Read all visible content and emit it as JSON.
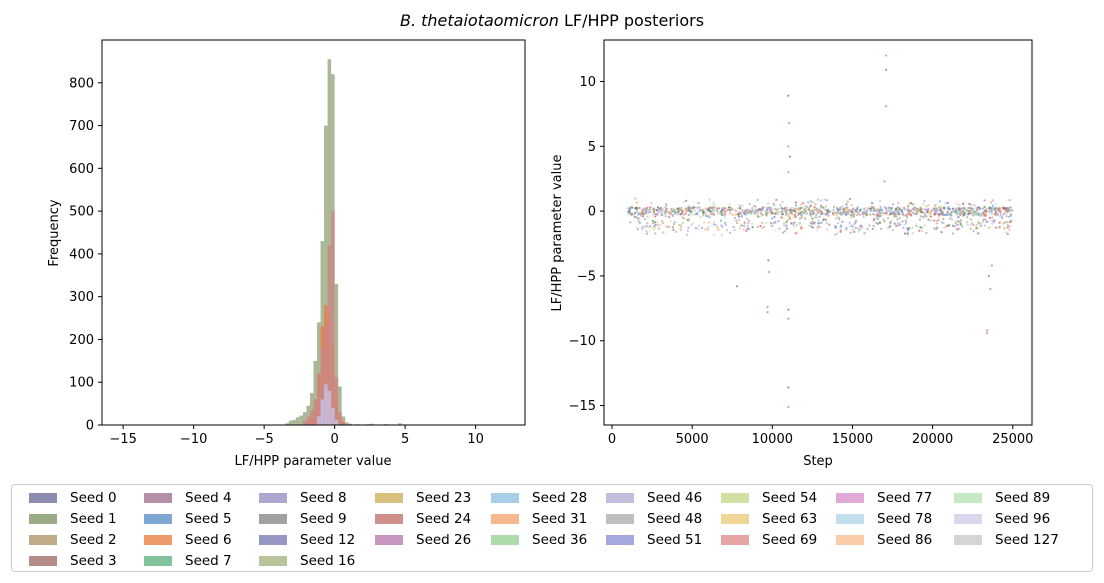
{
  "title_species": "B. thetaiotaomicron",
  "title_suffix": " LF/HPP posteriors",
  "chart_data": [
    {
      "type": "bar",
      "subtype": "overlaid-histogram",
      "xlabel": "LF/HPP parameter value",
      "ylabel": "Frequency",
      "xlim": [
        -16.5,
        13.5
      ],
      "ylim": [
        0,
        900
      ],
      "xticks": [
        -15,
        -10,
        -5,
        0,
        5,
        10
      ],
      "xtick_labels": [
        "−15",
        "−10",
        "−5",
        "0",
        "5",
        "10"
      ],
      "yticks": [
        0,
        100,
        200,
        300,
        400,
        500,
        600,
        700,
        800
      ],
      "yticks_labels": [
        "0",
        "100",
        "200",
        "300",
        "400",
        "500",
        "600",
        "700",
        "800"
      ],
      "bin_width": 0.25,
      "series": [
        {
          "name": "Seed 1",
          "color": "#9bab86",
          "bins": [
            [
              -3.5,
              4
            ],
            [
              -3.25,
              10
            ],
            [
              -3.0,
              12
            ],
            [
              -2.75,
              18
            ],
            [
              -2.5,
              22
            ],
            [
              -2.25,
              30
            ],
            [
              -2.0,
              45
            ],
            [
              -1.75,
              75
            ],
            [
              -1.5,
              150
            ],
            [
              -1.25,
              240
            ],
            [
              -1.0,
              430
            ],
            [
              -0.75,
              700
            ],
            [
              -0.5,
              855
            ],
            [
              -0.25,
              820
            ],
            [
              0.0,
              330
            ],
            [
              0.25,
              90
            ],
            [
              0.5,
              20
            ],
            [
              0.75,
              6
            ],
            [
              1.0,
              3
            ],
            [
              1.5,
              2
            ],
            [
              2.25,
              2
            ],
            [
              2.5,
              3
            ],
            [
              3.5,
              2
            ],
            [
              4.5,
              4
            ]
          ]
        },
        {
          "name": "Seed 6",
          "color": "#e77c4f",
          "bins": [
            [
              -2.0,
              8
            ],
            [
              -1.75,
              18
            ],
            [
              -1.5,
              55
            ],
            [
              -1.25,
              120
            ],
            [
              -1.0,
              230
            ],
            [
              -0.75,
              280
            ],
            [
              -0.5,
              250
            ],
            [
              -0.25,
              190
            ],
            [
              0.0,
              70
            ],
            [
              0.25,
              20
            ],
            [
              0.5,
              6
            ]
          ]
        },
        {
          "name": "Seed 24",
          "color": "#c98884",
          "bins": [
            [
              -2.25,
              10
            ],
            [
              -2.0,
              20
            ],
            [
              -1.75,
              35
            ],
            [
              -1.5,
              60
            ],
            [
              -1.25,
              120
            ],
            [
              -1.0,
              180
            ],
            [
              -0.75,
              230
            ],
            [
              -0.5,
              420
            ],
            [
              -0.25,
              500
            ],
            [
              0.0,
              110
            ],
            [
              0.25,
              30
            ],
            [
              0.5,
              8
            ]
          ]
        },
        {
          "name": "Seed 46",
          "color": "#c5bde0",
          "bins": [
            [
              -1.25,
              20
            ],
            [
              -1.0,
              60
            ],
            [
              -0.75,
              95
            ],
            [
              -0.5,
              80
            ],
            [
              -0.25,
              40
            ],
            [
              0.0,
              12
            ]
          ]
        }
      ],
      "scatter_note": ""
    },
    {
      "type": "scatter",
      "xlabel": "Step",
      "ylabel": "LF/HPP parameter value",
      "xlim": [
        -500,
        26200
      ],
      "ylim": [
        -16.5,
        13.2
      ],
      "xticks": [
        0,
        5000,
        10000,
        15000,
        20000,
        25000
      ],
      "xtick_labels": [
        "0",
        "5000",
        "10000",
        "15000",
        "20000",
        "25000"
      ],
      "yticks": [
        -15,
        -10,
        -5,
        0,
        5,
        10
      ],
      "ytick_labels": [
        "−15",
        "−10",
        "−5",
        "0",
        "5",
        "10"
      ],
      "step_range": [
        1000,
        25000
      ],
      "center": 0,
      "outliers": [
        {
          "x": 11000,
          "y": 8.9
        },
        {
          "x": 11050,
          "y": 6.8
        },
        {
          "x": 11000,
          "y": 5.0
        },
        {
          "x": 11100,
          "y": 4.2
        },
        {
          "x": 11000,
          "y": 3.0
        },
        {
          "x": 17100,
          "y": 12.0
        },
        {
          "x": 17100,
          "y": 10.9
        },
        {
          "x": 17100,
          "y": 8.1
        },
        {
          "x": 17000,
          "y": 2.3
        },
        {
          "x": 11000,
          "y": -13.6
        },
        {
          "x": 11000,
          "y": -15.1
        },
        {
          "x": 11000,
          "y": -8.3
        },
        {
          "x": 11000,
          "y": -7.6
        },
        {
          "x": 9700,
          "y": -7.4
        },
        {
          "x": 9700,
          "y": -7.8
        },
        {
          "x": 7800,
          "y": -5.8
        },
        {
          "x": 23400,
          "y": -9.2
        },
        {
          "x": 23400,
          "y": -9.4
        },
        {
          "x": 23500,
          "y": -5.0
        },
        {
          "x": 23600,
          "y": -6.0
        },
        {
          "x": 9800,
          "y": -4.7
        },
        {
          "x": 9750,
          "y": -3.8
        },
        {
          "x": 23700,
          "y": -4.2
        }
      ]
    }
  ],
  "legend": {
    "columns": [
      [
        {
          "label": "Seed 0",
          "color": "#8d8db0"
        },
        {
          "label": "Seed 1",
          "color": "#9bab86"
        },
        {
          "label": "Seed 2",
          "color": "#bfac86"
        },
        {
          "label": "Seed 3",
          "color": "#b58c88"
        }
      ],
      [
        {
          "label": "Seed 4",
          "color": "#b58ea8"
        },
        {
          "label": "Seed 5",
          "color": "#7ea8d1"
        },
        {
          "label": "Seed 6",
          "color": "#ee9b6c"
        },
        {
          "label": "Seed 7",
          "color": "#82c39c"
        }
      ],
      [
        {
          "label": "Seed 8",
          "color": "#aba7d0"
        },
        {
          "label": "Seed 9",
          "color": "#a1a1a1"
        },
        {
          "label": "Seed 12",
          "color": "#9697c5"
        },
        {
          "label": "Seed 16",
          "color": "#b8c49a"
        }
      ],
      [
        {
          "label": "Seed 23",
          "color": "#d8c07f"
        },
        {
          "label": "Seed 24",
          "color": "#cf908c"
        },
        {
          "label": "Seed 26",
          "color": "#c996c0"
        }
      ],
      [
        {
          "label": "Seed 28",
          "color": "#a8cfe7"
        },
        {
          "label": "Seed 31",
          "color": "#f5b78d"
        },
        {
          "label": "Seed 36",
          "color": "#addba9"
        }
      ],
      [
        {
          "label": "Seed 46",
          "color": "#c3bddd"
        },
        {
          "label": "Seed 48",
          "color": "#bfbfbf"
        },
        {
          "label": "Seed 51",
          "color": "#a3a8dd"
        }
      ],
      [
        {
          "label": "Seed 54",
          "color": "#d3e0a4"
        },
        {
          "label": "Seed 63",
          "color": "#efd696"
        },
        {
          "label": "Seed 69",
          "color": "#e6a4a4"
        }
      ],
      [
        {
          "label": "Seed 77",
          "color": "#e2a8d8"
        },
        {
          "label": "Seed 78",
          "color": "#c3dfed"
        },
        {
          "label": "Seed 86",
          "color": "#f8cca7"
        }
      ],
      [
        {
          "label": "Seed 89",
          "color": "#c6e8c2"
        },
        {
          "label": "Seed 96",
          "color": "#d9d7ec"
        },
        {
          "label": "Seed 127",
          "color": "#d5d5d5"
        }
      ]
    ]
  }
}
